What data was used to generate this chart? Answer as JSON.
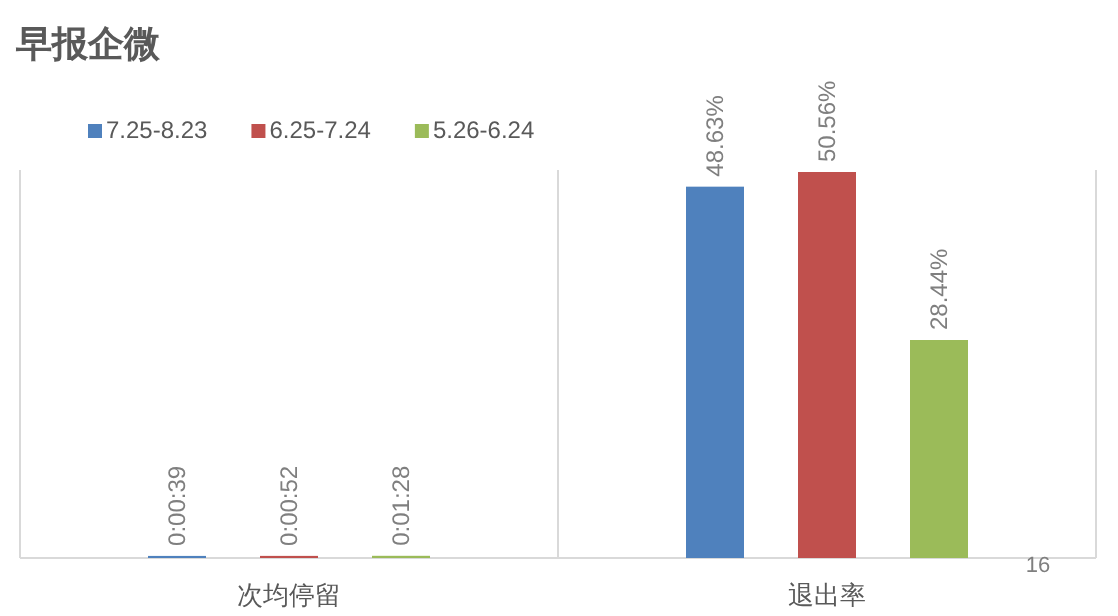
{
  "chart_data": {
    "type": "bar",
    "title": "早报企微",
    "categories": [
      "次均停留",
      "退出率"
    ],
    "legend": "top left",
    "annotations": [
      "16"
    ],
    "series": [
      {
        "name": "7.25-8.23",
        "color": "#4f81bd",
        "values": [
          0.01083,
          48.63
        ],
        "value_labels": [
          "0:00:39",
          "48.63%"
        ]
      },
      {
        "name": "6.25-7.24",
        "color": "#c0504d",
        "values": [
          0.01444,
          50.56
        ],
        "value_labels": [
          "0:00:52",
          "50.56%"
        ]
      },
      {
        "name": "5.26-6.24",
        "color": "#9bbb59",
        "values": [
          0.02444,
          28.44
        ],
        "value_labels": [
          "0:01:28",
          "28.44%"
        ]
      }
    ]
  }
}
